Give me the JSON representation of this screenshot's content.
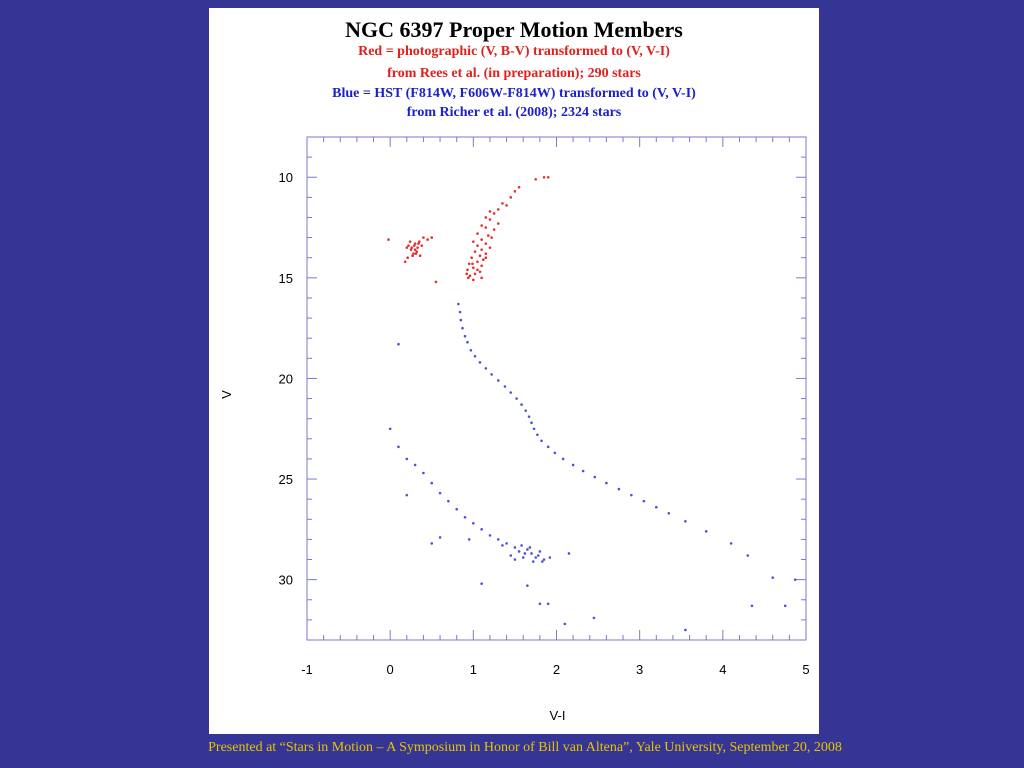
{
  "slide": {
    "footer": "Presented at “Stars in Motion – A Symposium in Honor of Bill van Altena”, Yale University, September 20, 2008",
    "background_color": "#343594",
    "footer_color": "#e8c400"
  },
  "chart_data": {
    "type": "scatter",
    "title": "NGC 6397 Proper Motion Members",
    "subtitle_lines": [
      {
        "text": "Red = photographic (V, B-V) transformed to (V, V-I)",
        "color": "#e0201c"
      },
      {
        "text": "from Rees et al. (in preparation); 290 stars",
        "color": "#e0201c"
      },
      {
        "text": "Blue = HST (F814W, F606W-F814W) transformed to (V, V-I)",
        "color": "#1c22c8"
      },
      {
        "text": "from Richer et al. (2008); 2324 stars",
        "color": "#1c22c8"
      }
    ],
    "xlabel": "V-I",
    "ylabel": "V",
    "xlim": [
      -1,
      5
    ],
    "ylim": [
      33,
      8
    ],
    "y_inverted": true,
    "xticks": [
      "-1",
      "0",
      "1",
      "2",
      "3",
      "4",
      "5"
    ],
    "yticks": [
      "10",
      "15",
      "20",
      "25",
      "30"
    ],
    "grid": false,
    "series": [
      {
        "color": "#e03030",
        "points": [
          [
            1.55,
            10.5
          ],
          [
            1.75,
            10.1
          ],
          [
            1.85,
            10.0
          ],
          [
            1.9,
            10.0
          ],
          [
            1.5,
            10.7
          ],
          [
            1.45,
            11.0
          ],
          [
            1.35,
            11.3
          ],
          [
            1.4,
            11.4
          ],
          [
            1.3,
            11.6
          ],
          [
            1.25,
            11.8
          ],
          [
            1.2,
            11.7
          ],
          [
            1.15,
            12.0
          ],
          [
            1.2,
            12.1
          ],
          [
            1.3,
            12.3
          ],
          [
            1.1,
            12.4
          ],
          [
            1.15,
            12.5
          ],
          [
            1.25,
            12.6
          ],
          [
            1.05,
            12.8
          ],
          [
            1.18,
            12.9
          ],
          [
            1.22,
            13.0
          ],
          [
            1.1,
            13.1
          ],
          [
            1.0,
            13.2
          ],
          [
            1.15,
            13.3
          ],
          [
            1.05,
            13.4
          ],
          [
            1.2,
            13.5
          ],
          [
            1.1,
            13.6
          ],
          [
            1.02,
            13.7
          ],
          [
            1.15,
            13.8
          ],
          [
            1.08,
            13.9
          ],
          [
            0.98,
            14.0
          ],
          [
            1.12,
            14.1
          ],
          [
            1.05,
            14.2
          ],
          [
            0.95,
            14.3
          ],
          [
            1.1,
            14.4
          ],
          [
            1.0,
            14.5
          ],
          [
            0.93,
            14.6
          ],
          [
            1.08,
            14.7
          ],
          [
            1.02,
            14.8
          ],
          [
            0.96,
            14.9
          ],
          [
            1.1,
            15.0
          ],
          [
            1.0,
            15.1
          ],
          [
            0.94,
            15.0
          ],
          [
            1.05,
            14.6
          ],
          [
            0.99,
            14.3
          ],
          [
            1.15,
            14.0
          ],
          [
            0.92,
            14.8
          ],
          [
            0.2,
            13.5
          ],
          [
            0.25,
            13.6
          ],
          [
            0.3,
            13.3
          ],
          [
            0.28,
            13.8
          ],
          [
            0.22,
            13.4
          ],
          [
            0.35,
            13.2
          ],
          [
            0.32,
            13.7
          ],
          [
            0.4,
            13.0
          ],
          [
            0.27,
            13.9
          ],
          [
            0.21,
            14.0
          ],
          [
            0.33,
            13.5
          ],
          [
            0.38,
            13.4
          ],
          [
            0.3,
            13.6
          ],
          [
            0.45,
            13.1
          ],
          [
            0.5,
            13.0
          ],
          [
            0.24,
            13.2
          ],
          [
            -0.02,
            13.1
          ],
          [
            0.18,
            14.2
          ],
          [
            0.36,
            13.9
          ],
          [
            0.29,
            13.4
          ],
          [
            0.55,
            15.2
          ],
          [
            0.26,
            13.5
          ],
          [
            0.34,
            13.3
          ],
          [
            0.31,
            13.8
          ]
        ]
      },
      {
        "color": "#4a52d8",
        "points": [
          [
            0.82,
            16.3
          ],
          [
            0.84,
            16.7
          ],
          [
            0.85,
            17.1
          ],
          [
            0.87,
            17.5
          ],
          [
            0.9,
            17.9
          ],
          [
            0.93,
            18.2
          ],
          [
            0.97,
            18.6
          ],
          [
            1.02,
            18.9
          ],
          [
            1.08,
            19.2
          ],
          [
            1.15,
            19.5
          ],
          [
            1.22,
            19.8
          ],
          [
            1.3,
            20.1
          ],
          [
            1.38,
            20.4
          ],
          [
            1.45,
            20.7
          ],
          [
            1.52,
            21.0
          ],
          [
            1.58,
            21.3
          ],
          [
            1.63,
            21.6
          ],
          [
            1.67,
            21.9
          ],
          [
            1.7,
            22.2
          ],
          [
            1.73,
            22.5
          ],
          [
            1.77,
            22.8
          ],
          [
            1.82,
            23.1
          ],
          [
            1.9,
            23.4
          ],
          [
            1.98,
            23.7
          ],
          [
            2.08,
            24.0
          ],
          [
            2.2,
            24.3
          ],
          [
            2.32,
            24.6
          ],
          [
            2.46,
            24.9
          ],
          [
            2.6,
            25.2
          ],
          [
            2.75,
            25.5
          ],
          [
            2.9,
            25.8
          ],
          [
            3.05,
            26.1
          ],
          [
            3.2,
            26.4
          ],
          [
            3.35,
            26.7
          ],
          [
            3.55,
            27.1
          ],
          [
            3.8,
            27.6
          ],
          [
            4.1,
            28.2
          ],
          [
            4.3,
            28.8
          ],
          [
            4.6,
            29.9
          ],
          [
            4.75,
            31.3
          ],
          [
            4.87,
            30.0
          ],
          [
            4.35,
            31.3
          ],
          [
            3.55,
            32.5
          ],
          [
            2.45,
            31.9
          ],
          [
            2.1,
            32.2
          ],
          [
            1.9,
            31.2
          ],
          [
            0.1,
            23.4
          ],
          [
            0.2,
            24.0
          ],
          [
            0.3,
            24.3
          ],
          [
            0.4,
            24.7
          ],
          [
            0.5,
            25.2
          ],
          [
            0.6,
            25.7
          ],
          [
            0.7,
            26.1
          ],
          [
            0.8,
            26.5
          ],
          [
            0.9,
            26.9
          ],
          [
            1.0,
            27.2
          ],
          [
            1.1,
            27.5
          ],
          [
            1.2,
            27.8
          ],
          [
            1.3,
            28.0
          ],
          [
            1.4,
            28.2
          ],
          [
            1.5,
            28.4
          ],
          [
            1.55,
            28.6
          ],
          [
            1.6,
            28.9
          ],
          [
            1.65,
            28.5
          ],
          [
            1.7,
            28.7
          ],
          [
            1.75,
            28.9
          ],
          [
            1.8,
            28.6
          ],
          [
            1.85,
            29.0
          ],
          [
            1.45,
            28.8
          ],
          [
            1.35,
            28.3
          ],
          [
            1.5,
            29.0
          ],
          [
            1.58,
            28.3
          ],
          [
            1.72,
            29.1
          ],
          [
            1.62,
            28.7
          ],
          [
            1.68,
            28.4
          ],
          [
            1.78,
            28.8
          ],
          [
            1.83,
            29.1
          ],
          [
            1.92,
            28.9
          ],
          [
            0.95,
            28.0
          ],
          [
            0.5,
            28.2
          ],
          [
            0.2,
            25.8
          ],
          [
            0.0,
            22.5
          ],
          [
            0.1,
            18.3
          ],
          [
            2.15,
            28.7
          ],
          [
            1.65,
            30.3
          ],
          [
            1.1,
            30.2
          ],
          [
            1.8,
            31.2
          ],
          [
            0.6,
            27.9
          ]
        ]
      }
    ]
  }
}
